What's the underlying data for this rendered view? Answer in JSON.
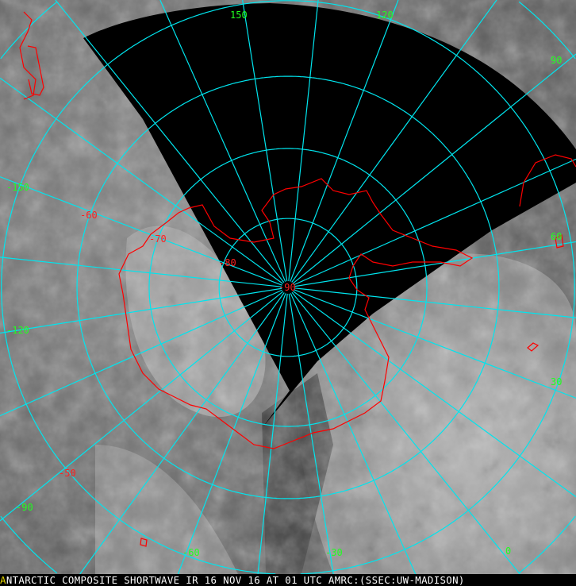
{
  "caption": {
    "logo_glyph": "A",
    "text": "NTARCTIC COMPOSITE SHORTWAVE IR 16 NOV 16 AT 01 UTC AMRC:(SSEC:UW-MADISON)"
  },
  "map": {
    "projection": "polar stereographic (south pole)",
    "pole_label": "-90",
    "latitude_labels": [
      "-80",
      "-70",
      "-60",
      "-50"
    ],
    "longitude_labels": [
      "150",
      "120",
      "90",
      "60",
      "30",
      "0",
      "-30",
      "-60",
      "-90",
      "-120",
      "-150"
    ],
    "colors": {
      "grid": "#00e5ee",
      "coastline": "#ff0000",
      "latitude_label": "#ff2020",
      "longitude_label": "#20ff20",
      "no_data": "#000000",
      "caption_text": "#ffffff",
      "logo": "#e8d800"
    }
  }
}
